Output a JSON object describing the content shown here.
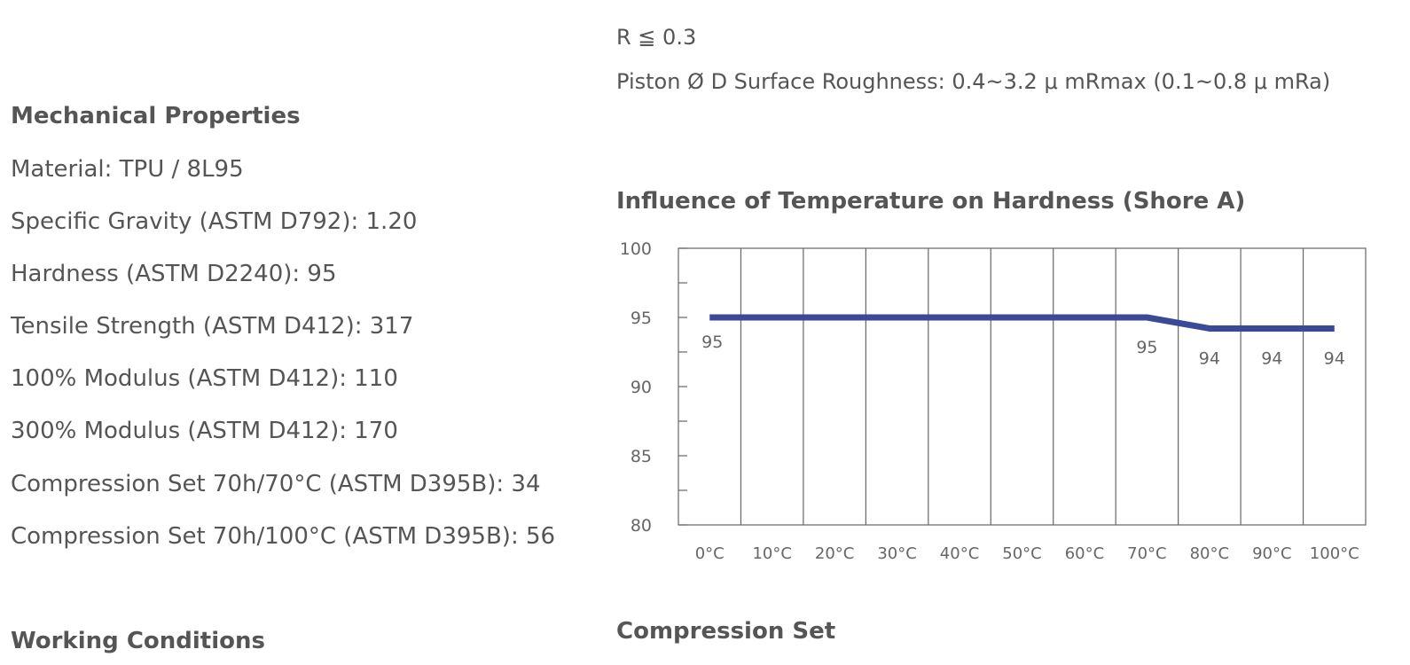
{
  "left": {
    "mechanical_heading": "Mechanical Properties",
    "properties": [
      "Material: TPU / 8L95",
      "Specific Gravity (ASTM D792): 1.20",
      "Hardness (ASTM D2240): 95",
      "Tensile Strength (ASTM D412): 317",
      "100% Modulus (ASTM D412): 110",
      "300% Modulus (ASTM D412): 170",
      "Compression Set 70h/70°C (ASTM D395B): 34",
      "Compression Set 70h/100°C (ASTM D395B): 56"
    ],
    "working_heading": "Working Conditions"
  },
  "right": {
    "notes": [
      "R ≦ 0.3",
      "Piston Ø D Surface Roughness: 0.4~3.2 μ mRmax (0.1~0.8 μ mRa)"
    ],
    "compression_heading": "Compression Set"
  },
  "chart_data": {
    "type": "line",
    "title": "Influence of Temperature on Hardness (Shore A)",
    "categories": [
      "0°C",
      "10°C",
      "20°C",
      "30°C",
      "40°C",
      "50°C",
      "60°C",
      "70°C",
      "80°C",
      "90°C",
      "100°C"
    ],
    "values": [
      95,
      95,
      95,
      95,
      95,
      95,
      95,
      95,
      94.2,
      94.2,
      94.2
    ],
    "data_labels": [
      {
        "index": 0,
        "text": "95"
      },
      {
        "index": 7,
        "text": "95"
      },
      {
        "index": 8,
        "text": "94"
      },
      {
        "index": 9,
        "text": "94"
      },
      {
        "index": 10,
        "text": "94"
      }
    ],
    "y_ticks": [
      100,
      95,
      90,
      85,
      80
    ],
    "ylim": [
      80,
      100
    ],
    "grid": "vertical",
    "line_color": "#3b4a96",
    "xlabel": "",
    "ylabel": ""
  }
}
